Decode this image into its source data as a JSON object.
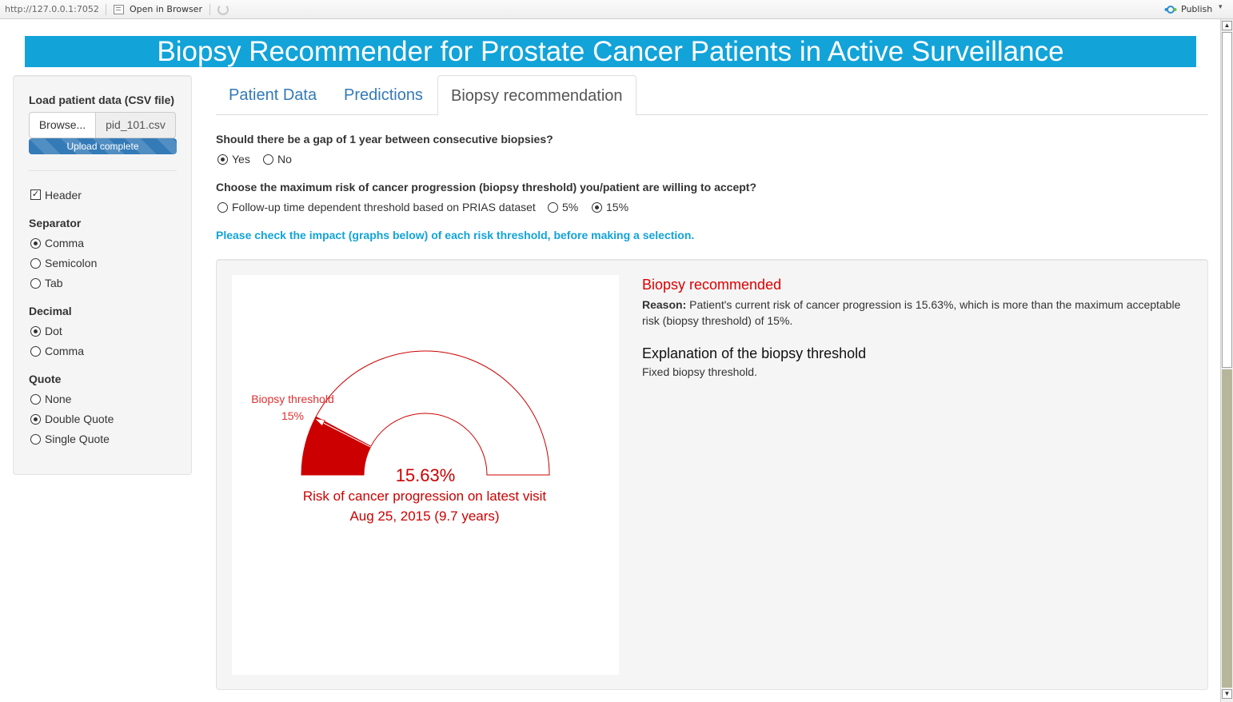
{
  "browser": {
    "url": "http://127.0.0.1:7052",
    "open_in_browser": "Open in Browser",
    "publish": "Publish",
    "publish_caret": "▾"
  },
  "app_title": "Biopsy Recommender for Prostate Cancer Patients in Active Surveillance",
  "sidebar": {
    "load_label": "Load patient data (CSV file)",
    "browse_label": "Browse...",
    "file_name": "pid_101.csv",
    "upload_status": "Upload complete",
    "header_label": "Header",
    "header_checked": true,
    "separator": {
      "label": "Separator",
      "options": [
        "Comma",
        "Semicolon",
        "Tab"
      ],
      "selected": "Comma"
    },
    "decimal": {
      "label": "Decimal",
      "options": [
        "Dot",
        "Comma"
      ],
      "selected": "Dot"
    },
    "quote": {
      "label": "Quote",
      "options": [
        "None",
        "Double Quote",
        "Single Quote"
      ],
      "selected": "Double Quote"
    }
  },
  "tabs": [
    {
      "label": "Patient Data",
      "active": false
    },
    {
      "label": "Predictions",
      "active": false
    },
    {
      "label": "Biopsy recommendation",
      "active": true
    }
  ],
  "gap_question": {
    "label": "Should there be a gap of 1 year between consecutive biopsies?",
    "options": [
      "Yes",
      "No"
    ],
    "selected": "Yes"
  },
  "threshold_question": {
    "label": "Choose the maximum risk of cancer progression (biopsy threshold) you/patient are willing to accept?",
    "options": [
      "Follow-up time dependent threshold based on PRIAS dataset",
      "5%",
      "15%"
    ],
    "selected": "15%"
  },
  "impact_note": "Please check the impact (graphs below) of each risk threshold, before making a selection.",
  "gauge": {
    "threshold_label": "Biopsy threshold",
    "threshold_value": "15%",
    "threshold_fraction": 0.15,
    "risk_fraction": 0.1563,
    "risk_value": "15.63%",
    "caption": "Risk of cancer progression on latest visit",
    "visit": "Aug 25, 2015 (9.7 years)",
    "color": "#cc0000"
  },
  "recommendation": {
    "title": "Biopsy recommended",
    "reason_prefix": "Reason:",
    "reason_text": "Patient's current risk of cancer progression is 15.63%, which is more than the maximum acceptable risk (biopsy threshold) of 15%.",
    "explanation_title": "Explanation of the biopsy threshold",
    "explanation_text": "Fixed biopsy threshold."
  },
  "icons": {
    "open": "open-in-browser-icon",
    "refresh": "refresh-icon",
    "publish": "publish-icon"
  }
}
